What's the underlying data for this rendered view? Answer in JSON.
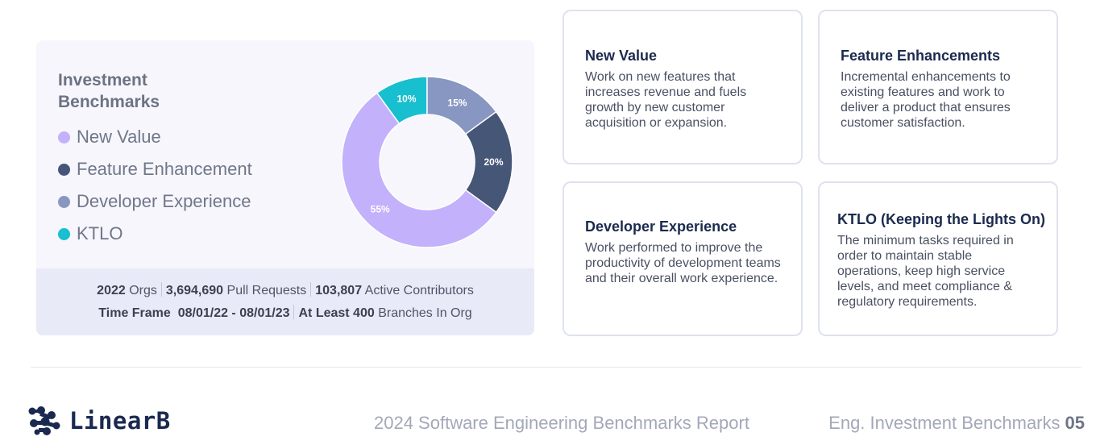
{
  "chart_data": {
    "type": "pie",
    "title": "Investment Benchmarks",
    "slices": [
      {
        "label": "New Value",
        "value": 55,
        "display": "55%",
        "color": "#c3b1fc"
      },
      {
        "label": "Feature Enhancement",
        "value": 20,
        "display": "20%",
        "color": "#465677"
      },
      {
        "label": "Developer Experience",
        "value": 15,
        "display": "15%",
        "color": "#8897c1"
      },
      {
        "label": "KTLO",
        "value": 10,
        "display": "10%",
        "color": "#17bfcf"
      }
    ]
  },
  "stats": {
    "orgs_value": "2022",
    "orgs_label": "Orgs",
    "pr_value": "3,694,690",
    "pr_label": "Pull Requests",
    "contrib_value": "103,807",
    "contrib_label": "Active Contributors",
    "timeframe_label": "Time Frame",
    "timeframe_value": "08/01/22 - 08/01/23",
    "branches_value": "At Least 400",
    "branches_label": "Branches In Org"
  },
  "cards": [
    {
      "title": "New Value",
      "body": "Work on new features that increases revenue and fuels growth by new customer acquisition or expansion."
    },
    {
      "title": "Feature Enhancements",
      "body": "Incremental enhancements to existing features and work to deliver a product that ensures customer satisfaction."
    },
    {
      "title": "Developer Experience",
      "body": "Work performed to improve the productivity of development teams and their overall work experience."
    },
    {
      "title": "KTLO (Keeping the Lights On)",
      "body": "The minimum tasks required in order to maintain stable operations, keep high service levels, and meet compliance & regulatory requirements."
    }
  ],
  "footer": {
    "brand": "LinearB",
    "report": "2024 Software Engineering Benchmarks Report",
    "section": "Eng. Investment Benchmarks",
    "page": "05"
  }
}
